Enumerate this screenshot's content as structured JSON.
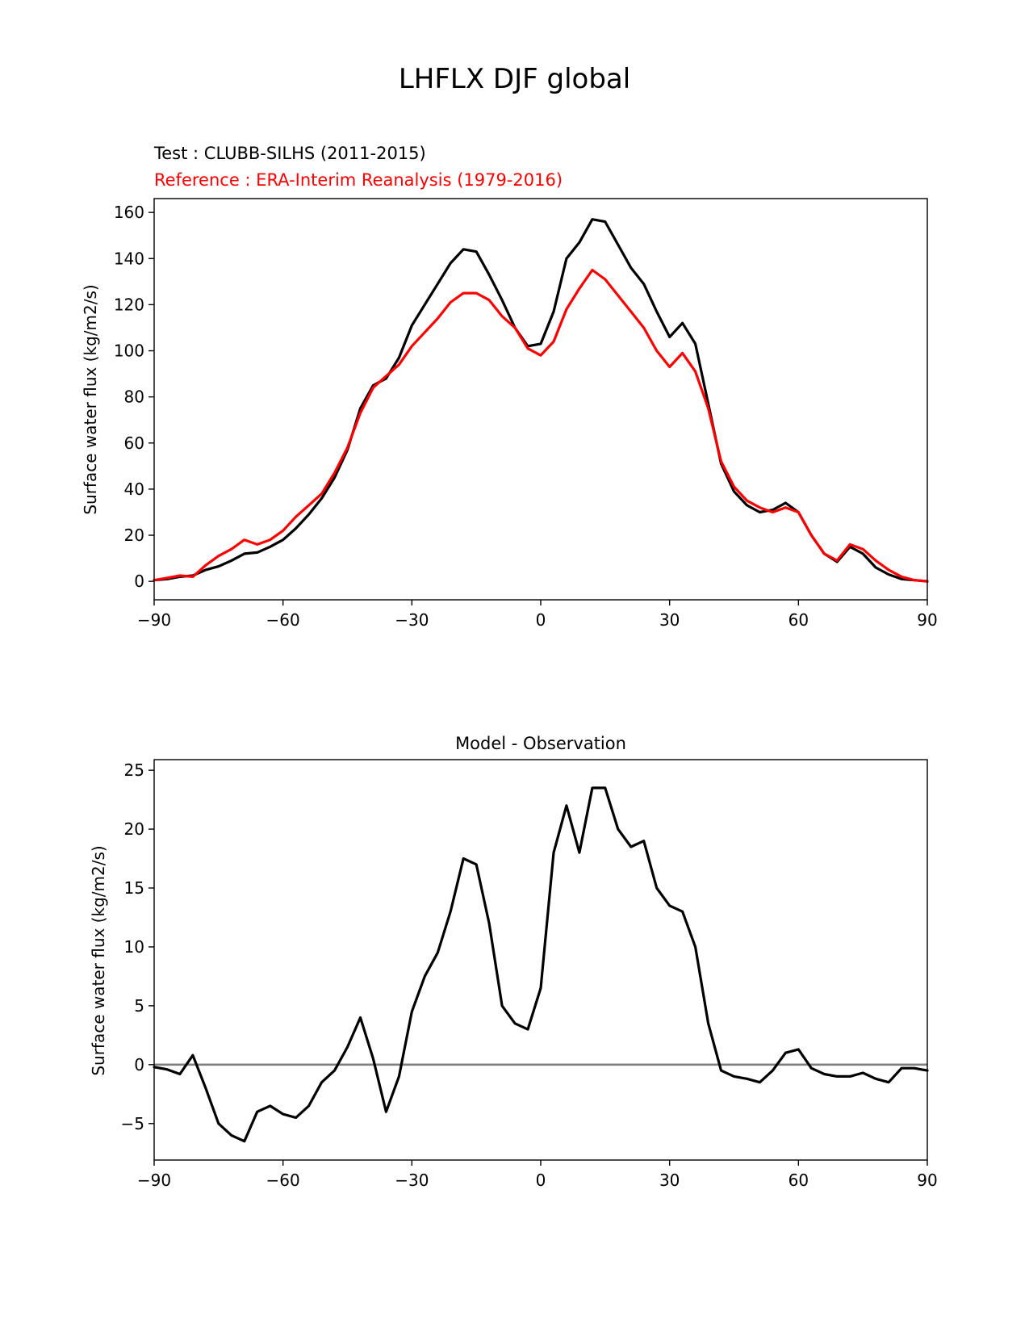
{
  "figure": {
    "title": "LHFLX DJF global"
  },
  "chart_data": [
    {
      "type": "line",
      "test_label": "Test : CLUBB-SILHS (2011-2015)",
      "reference_label": "Reference : ERA-Interim Reanalysis (1979-2016)",
      "xlabel": "",
      "ylabel": "Surface water flux (kg/m2/s)",
      "xlim": [
        -90,
        90
      ],
      "ylim": [
        -8,
        166
      ],
      "xticks": [
        -90,
        -60,
        -30,
        0,
        30,
        60,
        90
      ],
      "xtick_labels": [
        "−90",
        "−60",
        "−30",
        "0",
        "30",
        "60",
        "90"
      ],
      "yticks": [
        0,
        20,
        40,
        60,
        80,
        100,
        120,
        140,
        160
      ],
      "ytick_labels": [
        "0",
        "20",
        "40",
        "60",
        "80",
        "100",
        "120",
        "140",
        "160"
      ],
      "x": [
        -90,
        -87,
        -84,
        -81,
        -78,
        -75,
        -72,
        -69,
        -66,
        -63,
        -60,
        -57,
        -54,
        -51,
        -48,
        -45,
        -42,
        -39,
        -36,
        -33,
        -30,
        -27,
        -24,
        -21,
        -18,
        -15,
        -12,
        -9,
        -6,
        -3,
        0,
        3,
        6,
        9,
        12,
        15,
        18,
        21,
        24,
        27,
        30,
        33,
        36,
        39,
        42,
        45,
        48,
        51,
        54,
        57,
        60,
        63,
        66,
        69,
        72,
        75,
        78,
        81,
        84,
        87,
        90
      ],
      "series": [
        {
          "name": "Test",
          "color": "#000000",
          "values": [
            0.5,
            1,
            2,
            2.5,
            5,
            6.5,
            9,
            12,
            12.5,
            15,
            18,
            23,
            29,
            36,
            45,
            57,
            75,
            85,
            88,
            97,
            111,
            120,
            129,
            138,
            144,
            143,
            133,
            122,
            110,
            102,
            103,
            117,
            140,
            147,
            157,
            156,
            146,
            136,
            129,
            117,
            106,
            112,
            103,
            77,
            51,
            39,
            33,
            30,
            31,
            34,
            30,
            20,
            12,
            8.5,
            15,
            12,
            6,
            3,
            1,
            0.5,
            0
          ]
        },
        {
          "name": "Reference",
          "color": "#ff0000",
          "values": [
            0.5,
            1.5,
            2.5,
            2,
            7,
            11,
            14,
            18,
            16,
            18,
            22,
            28,
            33,
            38,
            47,
            58,
            73,
            84,
            89,
            94,
            102,
            108,
            114,
            121,
            125,
            125,
            122,
            115,
            110,
            101,
            98,
            104,
            118,
            127,
            135,
            131,
            124,
            117,
            110,
            100,
            93,
            99,
            91,
            75,
            52,
            41,
            35,
            32,
            30,
            32,
            30,
            20,
            12,
            9,
            16,
            14,
            9,
            5,
            2,
            0.5,
            0
          ]
        }
      ]
    },
    {
      "type": "line",
      "title": "Model - Observation",
      "xlabel": "",
      "ylabel": "Surface water flux (kg/m2/s)",
      "xlim": [
        -90,
        90
      ],
      "ylim": [
        -8.1,
        25.9
      ],
      "xticks": [
        -90,
        -60,
        -30,
        0,
        30,
        60,
        90
      ],
      "xtick_labels": [
        "−90",
        "−60",
        "−30",
        "0",
        "30",
        "60",
        "90"
      ],
      "yticks": [
        -5,
        0,
        5,
        10,
        15,
        20,
        25
      ],
      "ytick_labels": [
        "−5",
        "0",
        "5",
        "10",
        "15",
        "20",
        "25"
      ],
      "zero_line": {
        "value": 0,
        "color": "#808080"
      },
      "x": [
        -90,
        -87,
        -84,
        -81,
        -78,
        -75,
        -72,
        -69,
        -66,
        -63,
        -60,
        -57,
        -54,
        -51,
        -48,
        -45,
        -42,
        -39,
        -36,
        -33,
        -30,
        -27,
        -24,
        -21,
        -18,
        -15,
        -12,
        -9,
        -6,
        -3,
        0,
        3,
        6,
        9,
        12,
        15,
        18,
        21,
        24,
        27,
        30,
        33,
        36,
        39,
        42,
        45,
        48,
        51,
        54,
        57,
        60,
        63,
        66,
        69,
        72,
        75,
        78,
        81,
        84,
        87,
        90
      ],
      "series": [
        {
          "name": "Model - Observation",
          "color": "#000000",
          "values": [
            -0.2,
            -0.4,
            -0.8,
            0.8,
            -2,
            -5,
            -6,
            -6.5,
            -4,
            -3.5,
            -4.2,
            -4.5,
            -3.5,
            -1.5,
            -0.5,
            1.5,
            4,
            0.5,
            -4,
            -1,
            4.5,
            7.5,
            9.5,
            13,
            17.5,
            17,
            12,
            5,
            3.5,
            3,
            6.5,
            18,
            22,
            18,
            23.5,
            23.5,
            20,
            18.5,
            19,
            15,
            13.5,
            13,
            10,
            3.5,
            -0.5,
            -1,
            -1.2,
            -1.5,
            -0.5,
            1,
            1.3,
            -0.3,
            -0.8,
            -1,
            -1,
            -0.7,
            -1.2,
            -1.5,
            -0.3,
            -0.3,
            -0.5
          ]
        }
      ]
    }
  ]
}
